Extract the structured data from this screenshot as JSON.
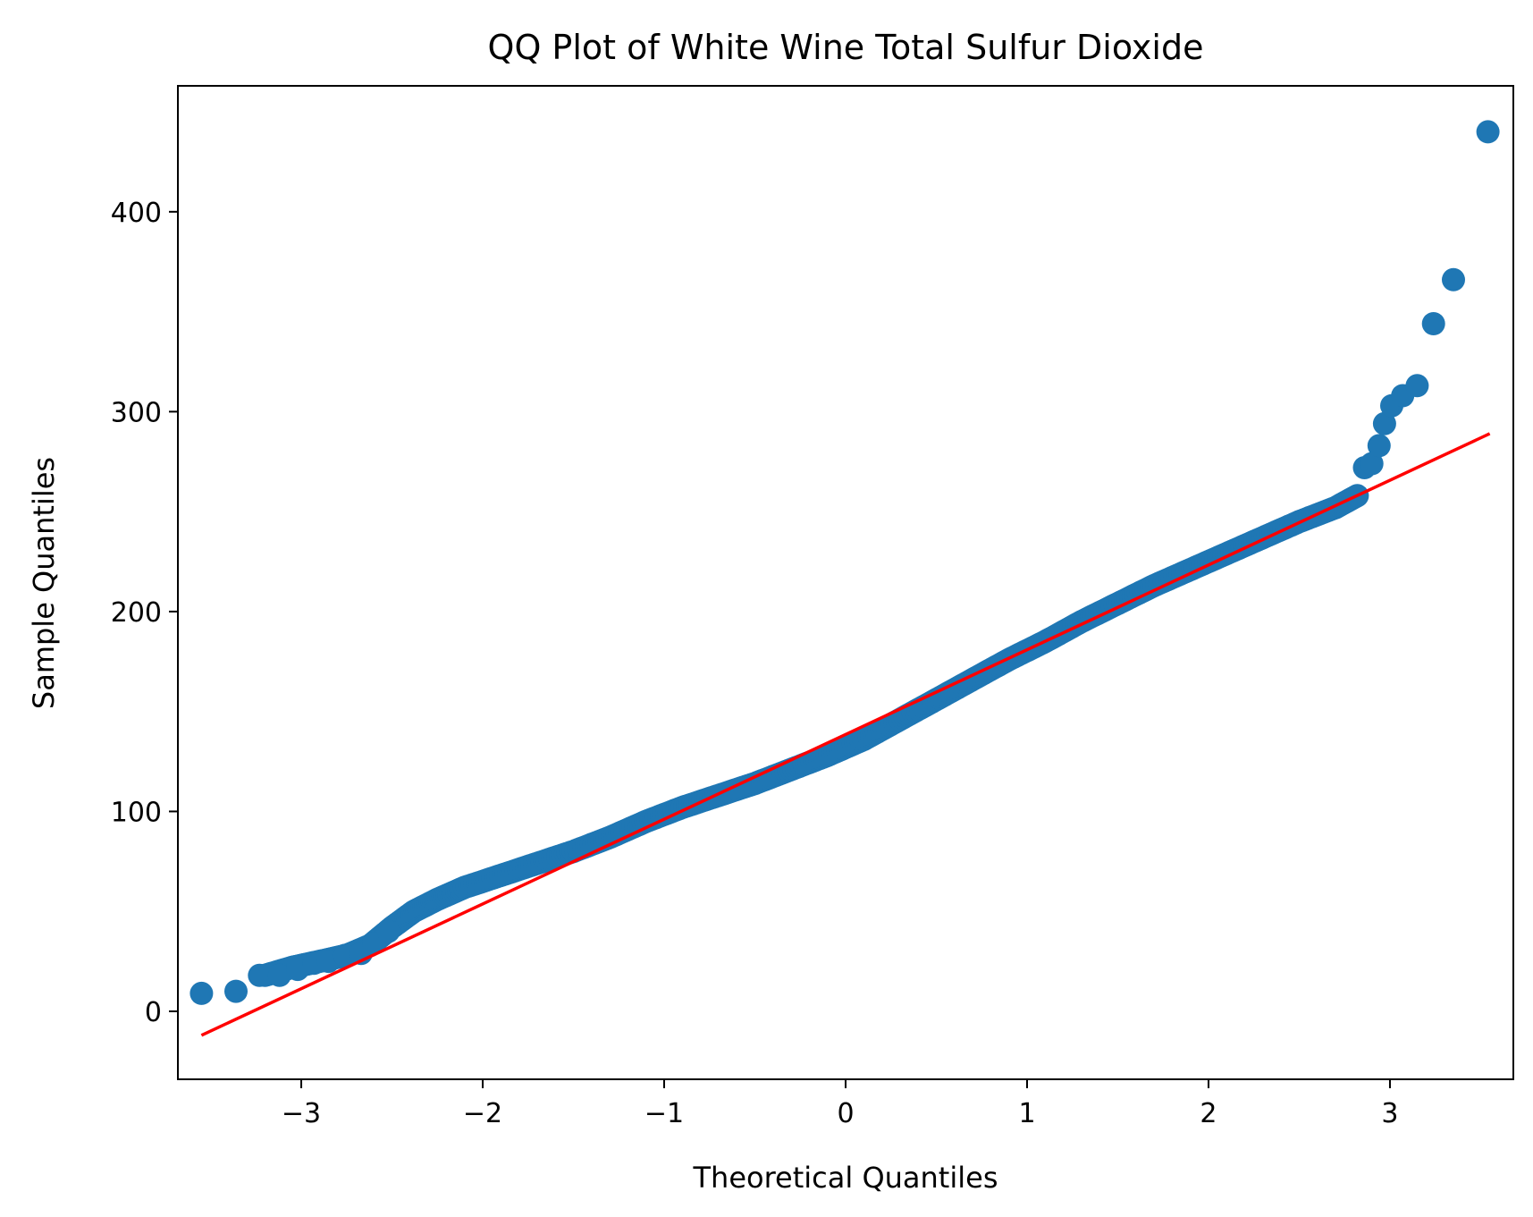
{
  "chart_data": {
    "type": "scatter",
    "title": "QQ Plot of White Wine Total Sulfur Dioxide",
    "xlabel": "Theoretical Quantiles",
    "ylabel": "Sample Quantiles",
    "xlim": [
      -3.68,
      3.68
    ],
    "ylim": [
      -34,
      463
    ],
    "x_ticks": [
      {
        "value": -3,
        "label": "−3"
      },
      {
        "value": -2,
        "label": "−2"
      },
      {
        "value": -1,
        "label": "−1"
      },
      {
        "value": 0,
        "label": "0"
      },
      {
        "value": 1,
        "label": "1"
      },
      {
        "value": 2,
        "label": "2"
      },
      {
        "value": 3,
        "label": "3"
      }
    ],
    "y_ticks": [
      {
        "value": 0,
        "label": "0"
      },
      {
        "value": 100,
        "label": "100"
      },
      {
        "value": 200,
        "label": "200"
      },
      {
        "value": 300,
        "label": "300"
      },
      {
        "value": 400,
        "label": "400"
      }
    ],
    "grid": false,
    "colors": {
      "points": "#1f77b4",
      "reference_line": "#ff0000"
    },
    "reference_line": {
      "x": [
        -3.55,
        3.55
      ],
      "y": [
        -12,
        289
      ]
    },
    "profile": [
      [
        -3.2,
        18
      ],
      [
        -3.05,
        22
      ],
      [
        -2.9,
        25
      ],
      [
        -2.75,
        28
      ],
      [
        -2.62,
        33
      ],
      [
        -2.5,
        42
      ],
      [
        -2.38,
        50
      ],
      [
        -2.25,
        56
      ],
      [
        -2.1,
        62
      ],
      [
        -1.9,
        68
      ],
      [
        -1.7,
        74
      ],
      [
        -1.5,
        80
      ],
      [
        -1.3,
        87
      ],
      [
        -1.1,
        95
      ],
      [
        -0.9,
        102
      ],
      [
        -0.7,
        108
      ],
      [
        -0.5,
        114
      ],
      [
        -0.3,
        121
      ],
      [
        -0.1,
        128
      ],
      [
        0.1,
        136
      ],
      [
        0.3,
        146
      ],
      [
        0.5,
        156
      ],
      [
        0.7,
        166
      ],
      [
        0.9,
        176
      ],
      [
        1.1,
        185
      ],
      [
        1.3,
        195
      ],
      [
        1.5,
        204
      ],
      [
        1.7,
        213
      ],
      [
        1.9,
        221
      ],
      [
        2.1,
        229
      ],
      [
        2.3,
        237
      ],
      [
        2.5,
        245
      ],
      [
        2.7,
        252
      ],
      [
        2.82,
        258
      ]
    ],
    "tail_points": [
      [
        -3.55,
        9
      ],
      [
        -3.36,
        10
      ],
      [
        -3.23,
        18
      ],
      [
        -3.12,
        18
      ],
      [
        -3.02,
        21
      ],
      [
        -2.93,
        24
      ],
      [
        -2.85,
        25
      ],
      [
        -2.76,
        28
      ],
      [
        -2.67,
        29
      ],
      [
        -2.6,
        34
      ],
      [
        -2.52,
        40
      ],
      [
        2.86,
        272
      ],
      [
        2.9,
        274
      ],
      [
        2.94,
        283
      ],
      [
        2.97,
        294
      ],
      [
        3.01,
        303
      ],
      [
        3.07,
        308
      ],
      [
        3.15,
        313
      ],
      [
        3.24,
        344
      ],
      [
        3.35,
        366
      ],
      [
        3.54,
        440
      ]
    ]
  }
}
